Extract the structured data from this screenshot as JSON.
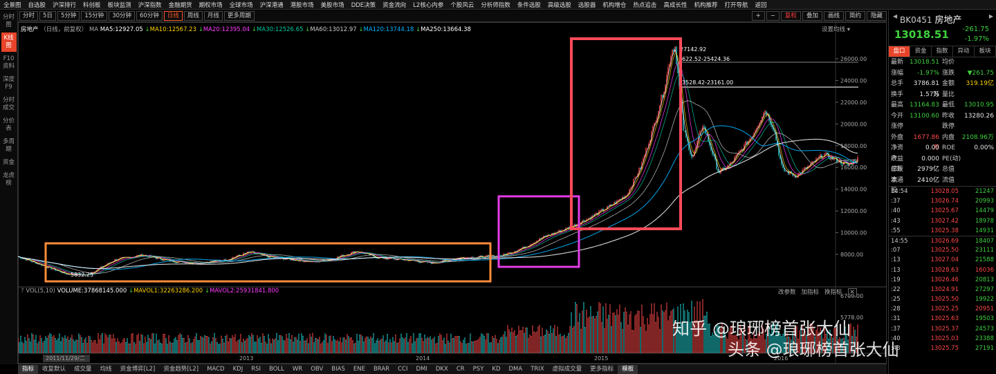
{
  "top_menu": [
    "全景图",
    "自选股",
    "沪深排行",
    "科创板",
    "板块监测",
    "沪深指数",
    "金融期货",
    "期权市场",
    "全球市场",
    "沪深港通",
    "港股市场",
    "美股市场",
    "DDE决策",
    "资金流向",
    "L2核心内参",
    "个股风云",
    "分析师指数",
    "条件选股",
    "高级选股",
    "选股器",
    "机构增仓",
    "热点追击",
    "高成长性",
    "机构推荐",
    "打开导航",
    "返回"
  ],
  "toolbar": {
    "periods": [
      "分时",
      "5日",
      "5分钟",
      "15分钟",
      "30分钟",
      "60分钟",
      "日线",
      "周线",
      "月线",
      "更多周期"
    ],
    "active_period": "日线",
    "right": [
      "复权",
      "叠加",
      "画线",
      "简约",
      "隐藏"
    ]
  },
  "left_tabs": [
    "分时图",
    "K线图",
    "F10资料",
    "深度F9",
    "分时成交",
    "分价表",
    "多周期",
    "资金",
    "龙虎榜"
  ],
  "legend_ma": {
    "name": "房地产",
    "mode": "（日线，前复权）",
    "ma": "MA",
    "ma5": "MA5:12927.05",
    "ma10": "MA10:12567.23",
    "ma20": "MA20:12395.04",
    "ma30": "MA30:12526.65",
    "ma60": "MA60:13012.97",
    "ma120": "MA120:13744.18",
    "ma250": "MA250:13664.38"
  },
  "set_ma_label": "设置均线",
  "legend_vol": {
    "vol": "VOL(5,10)",
    "volume": "VOLUME:37868145.000",
    "mavol1": "MAVOL1:32263286.200",
    "mavol2": "MAVOL2:25931841.800"
  },
  "vol_controls": [
    "改参数",
    "加指标",
    "换指标"
  ],
  "annotations": {
    "high": "27142.92",
    "low": "5832.25",
    "hline1": "622.52-25424.36",
    "hline2": "3528.42-23161.00"
  },
  "x_labels": [
    "2011/11/29/二",
    "2013",
    "2014",
    "2015",
    "2016"
  ],
  "y_labels": [
    "26000.00",
    "24000.00",
    "22000.00",
    "20000.00",
    "18000.00",
    "16000.00",
    "14000.00",
    "12000.00",
    "10000.00",
    "8000.00"
  ],
  "vol_y_labels": [
    "6709.00",
    "5778.00"
  ],
  "bottom_tabs": [
    "指标",
    "收复默认",
    "成交量",
    "均线",
    "资金博弈[L2]",
    "资金趋势[L2]",
    "MACD",
    "KDJ",
    "RSI",
    "BOLL",
    "WR",
    "OBV",
    "BIAS",
    "ENE",
    "BRAR",
    "CCI",
    "DMI",
    "DKX",
    "CR",
    "PSY",
    "KD",
    "DMA",
    "TRIX",
    "虚拟成交量",
    "更多指标",
    "模板"
  ],
  "stock": {
    "code": "BK0451",
    "name": "房地产",
    "price": "13018.51",
    "change": "-261.75",
    "pct": "-1.97%"
  },
  "right_tabs": [
    "盘口",
    "资金",
    "指数",
    "异动",
    "板块"
  ],
  "quote": [
    [
      "最新",
      "13018.51",
      "dn",
      "均价",
      "",
      "wh"
    ],
    [
      "涨幅",
      "-1.97%",
      "dn",
      "涨跌",
      "▼261.75",
      "dn"
    ],
    [
      "总手",
      "3786.81万",
      "wh",
      "金额",
      "319.19亿",
      "yl"
    ],
    [
      "换手",
      "1.57%",
      "wh",
      "量比",
      "",
      "wh"
    ],
    [
      "最高",
      "13164.83",
      "dn",
      "最低",
      "13010.95",
      "dn"
    ],
    [
      "今开",
      "13100.60",
      "dn",
      "昨收",
      "13280.26",
      "wh"
    ],
    [
      "涨停",
      "",
      "wh",
      "跌停",
      "",
      "wh"
    ],
    [
      "外盘",
      "1677.86万",
      "up",
      "内盘",
      "2108.96万",
      "dn"
    ],
    [
      "净资产",
      "0.00",
      "wh",
      "ROE",
      "0.00%",
      "wh"
    ],
    [
      "收益(四)",
      "0.000",
      "wh",
      "PE(动)",
      "",
      "wh"
    ],
    [
      "总股本",
      "2979亿",
      "wh",
      "总值",
      "",
      "wh"
    ],
    [
      "流通股",
      "2410亿",
      "wh",
      "流值",
      "",
      "wh"
    ]
  ],
  "ticks": [
    [
      "14:54",
      "13028.05",
      "21247",
      "dn"
    ],
    [
      ":37",
      "13026.74",
      "20993",
      "dn"
    ],
    [
      ":40",
      "13025.67",
      "14479",
      "dn"
    ],
    [
      ":43",
      "13027.42",
      "18978",
      "dn"
    ],
    [
      ":55",
      "13025.38",
      "14931",
      "dn"
    ],
    [
      "14:55",
      "13026.69",
      "18407",
      "dn"
    ],
    [
      ":07",
      "13025.50",
      "23111",
      "dn"
    ],
    [
      ":13",
      "13027.04",
      "21588",
      "dn"
    ],
    [
      ":13",
      "13028.63",
      "16036",
      "up"
    ],
    [
      ":19",
      "13026.46",
      "20813",
      "dn"
    ],
    [
      ":22",
      "13024.91",
      "27297",
      "dn"
    ],
    [
      ":25",
      "13025.50",
      "19922",
      "dn"
    ],
    [
      ":28",
      "13025.25",
      "20951",
      "up"
    ],
    [
      ":31",
      "13025.63",
      "19503",
      "dn"
    ],
    [
      ":37",
      "13025.37",
      "24573",
      "dn"
    ],
    [
      ":40",
      "13025.03",
      "23388",
      "dn"
    ],
    [
      ":43",
      "13025.75",
      "27191",
      "dn"
    ]
  ],
  "watermark": {
    "line1": "知乎 @琅琊榜首张大仙",
    "line2": "头条 @琅琊榜首张大仙"
  },
  "colors": {
    "up": "#ff4a4a",
    "down": "#3fd23f",
    "ma5": "#ffffff",
    "ma10": "#ffd200",
    "ma20": "#ff3cff",
    "ma30": "#00c8a0",
    "ma60": "#cccccc",
    "ma120": "#00b4ff",
    "ma250": "#ffffff",
    "box_orange": "#ff8c3a",
    "box_magenta": "#e43ce8",
    "box_red": "#ff4a5a"
  }
}
